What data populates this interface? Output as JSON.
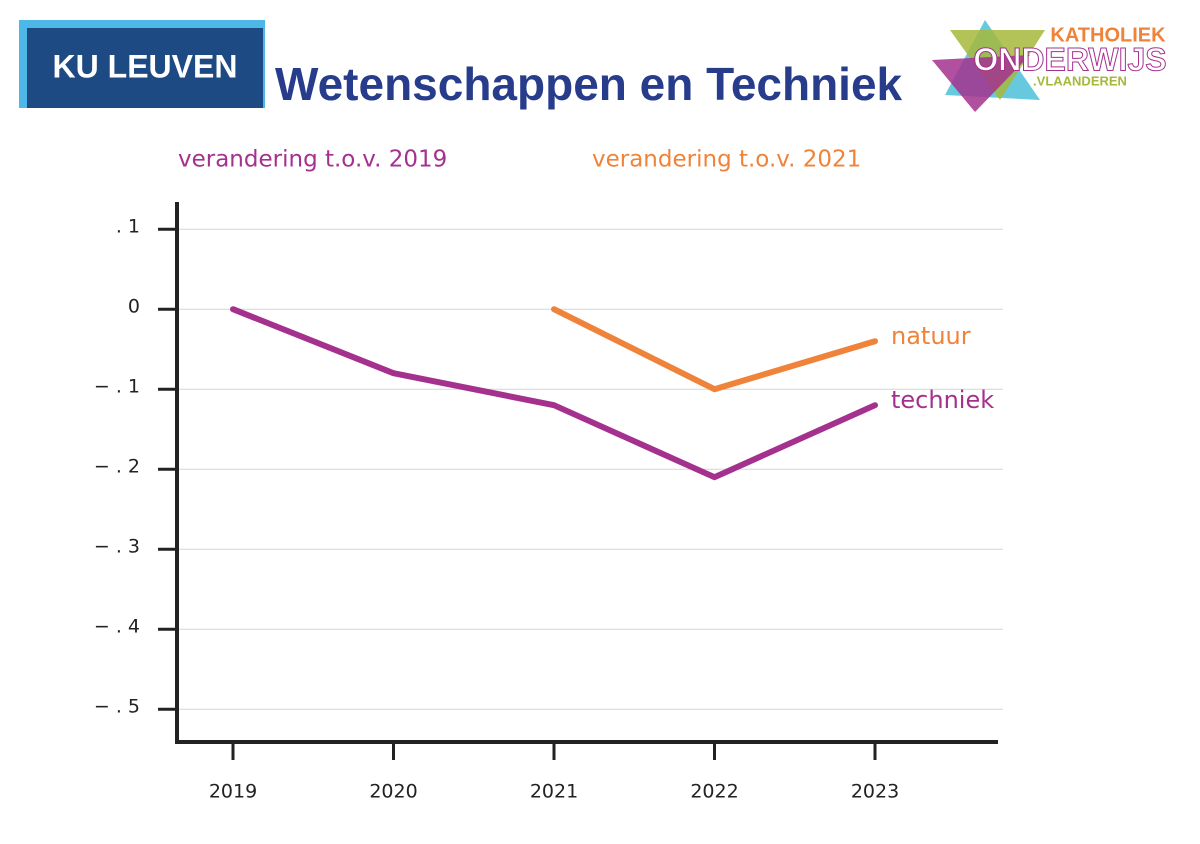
{
  "header": {
    "left_logo": "KU LEUVEN",
    "right_logo": [
      "KATHOLIEK",
      "ONDERWIJS",
      ".VLAANDEREN"
    ]
  },
  "chart_data": {
    "type": "line",
    "title": "Wetenschappen en Techniek",
    "annotations": [
      "verandering t.o.v. 2019",
      "verandering t.o.v. 2021"
    ],
    "categories": [
      "2019",
      "2020",
      "2021",
      "2022",
      "2023"
    ],
    "series": [
      {
        "name": "techniek",
        "color": "#a5318f",
        "values": [
          0,
          -0.08,
          -0.12,
          -0.21,
          -0.12
        ]
      },
      {
        "name": "natuur",
        "color": "#f0833a",
        "values": [
          null,
          null,
          0,
          -0.1,
          -0.04
        ]
      }
    ],
    "ylim": [
      -0.541,
      0.134
    ],
    "yticks": [
      {
        "value": 0.1,
        "label": ". 1"
      },
      0,
      {
        "value": -0.1,
        "label": "− . 1"
      },
      {
        "value": -0.2,
        "label": "− . 2"
      },
      {
        "value": -0.3,
        "label": "− . 3"
      },
      {
        "value": -0.4,
        "label": "− . 4"
      },
      {
        "value": -0.5,
        "label": "− . 5"
      }
    ],
    "grid": true
  }
}
